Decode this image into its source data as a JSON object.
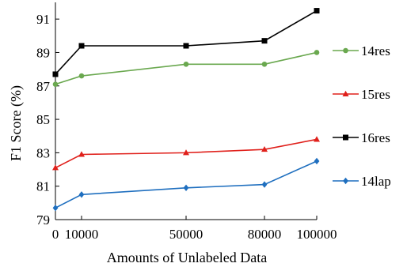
{
  "chart_data": {
    "type": "line",
    "xlabel": "Amounts of Unlabeled Data",
    "ylabel": "F1 Score (%)",
    "xlim": [
      0,
      100000
    ],
    "ylim": [
      79,
      92
    ],
    "x_ticks": [
      0,
      10000,
      50000,
      80000,
      100000
    ],
    "x_tick_labels": [
      "0",
      "10000",
      "50000",
      "80000",
      "100000"
    ],
    "y_ticks": [
      79,
      81,
      83,
      85,
      87,
      89,
      91
    ],
    "y_tick_labels": [
      "79",
      "81",
      "83",
      "85",
      "87",
      "89",
      "91"
    ],
    "grid": false,
    "legend_placement": "right",
    "x": [
      0,
      10000,
      50000,
      80000,
      100000
    ],
    "series": [
      {
        "name": "14res",
        "color": "#6aa84f",
        "marker": "circle",
        "values": [
          87.1,
          87.6,
          88.3,
          88.3,
          89.0
        ]
      },
      {
        "name": "15res",
        "color": "#e0201b",
        "marker": "triangle",
        "values": [
          82.1,
          82.9,
          83.0,
          83.2,
          83.8
        ]
      },
      {
        "name": "16res",
        "color": "#000000",
        "marker": "square",
        "values": [
          87.7,
          89.4,
          89.4,
          89.7,
          91.5
        ]
      },
      {
        "name": "14lap",
        "color": "#1f6fbf",
        "marker": "diamond",
        "values": [
          79.7,
          80.5,
          80.9,
          81.1,
          82.5
        ]
      }
    ]
  }
}
